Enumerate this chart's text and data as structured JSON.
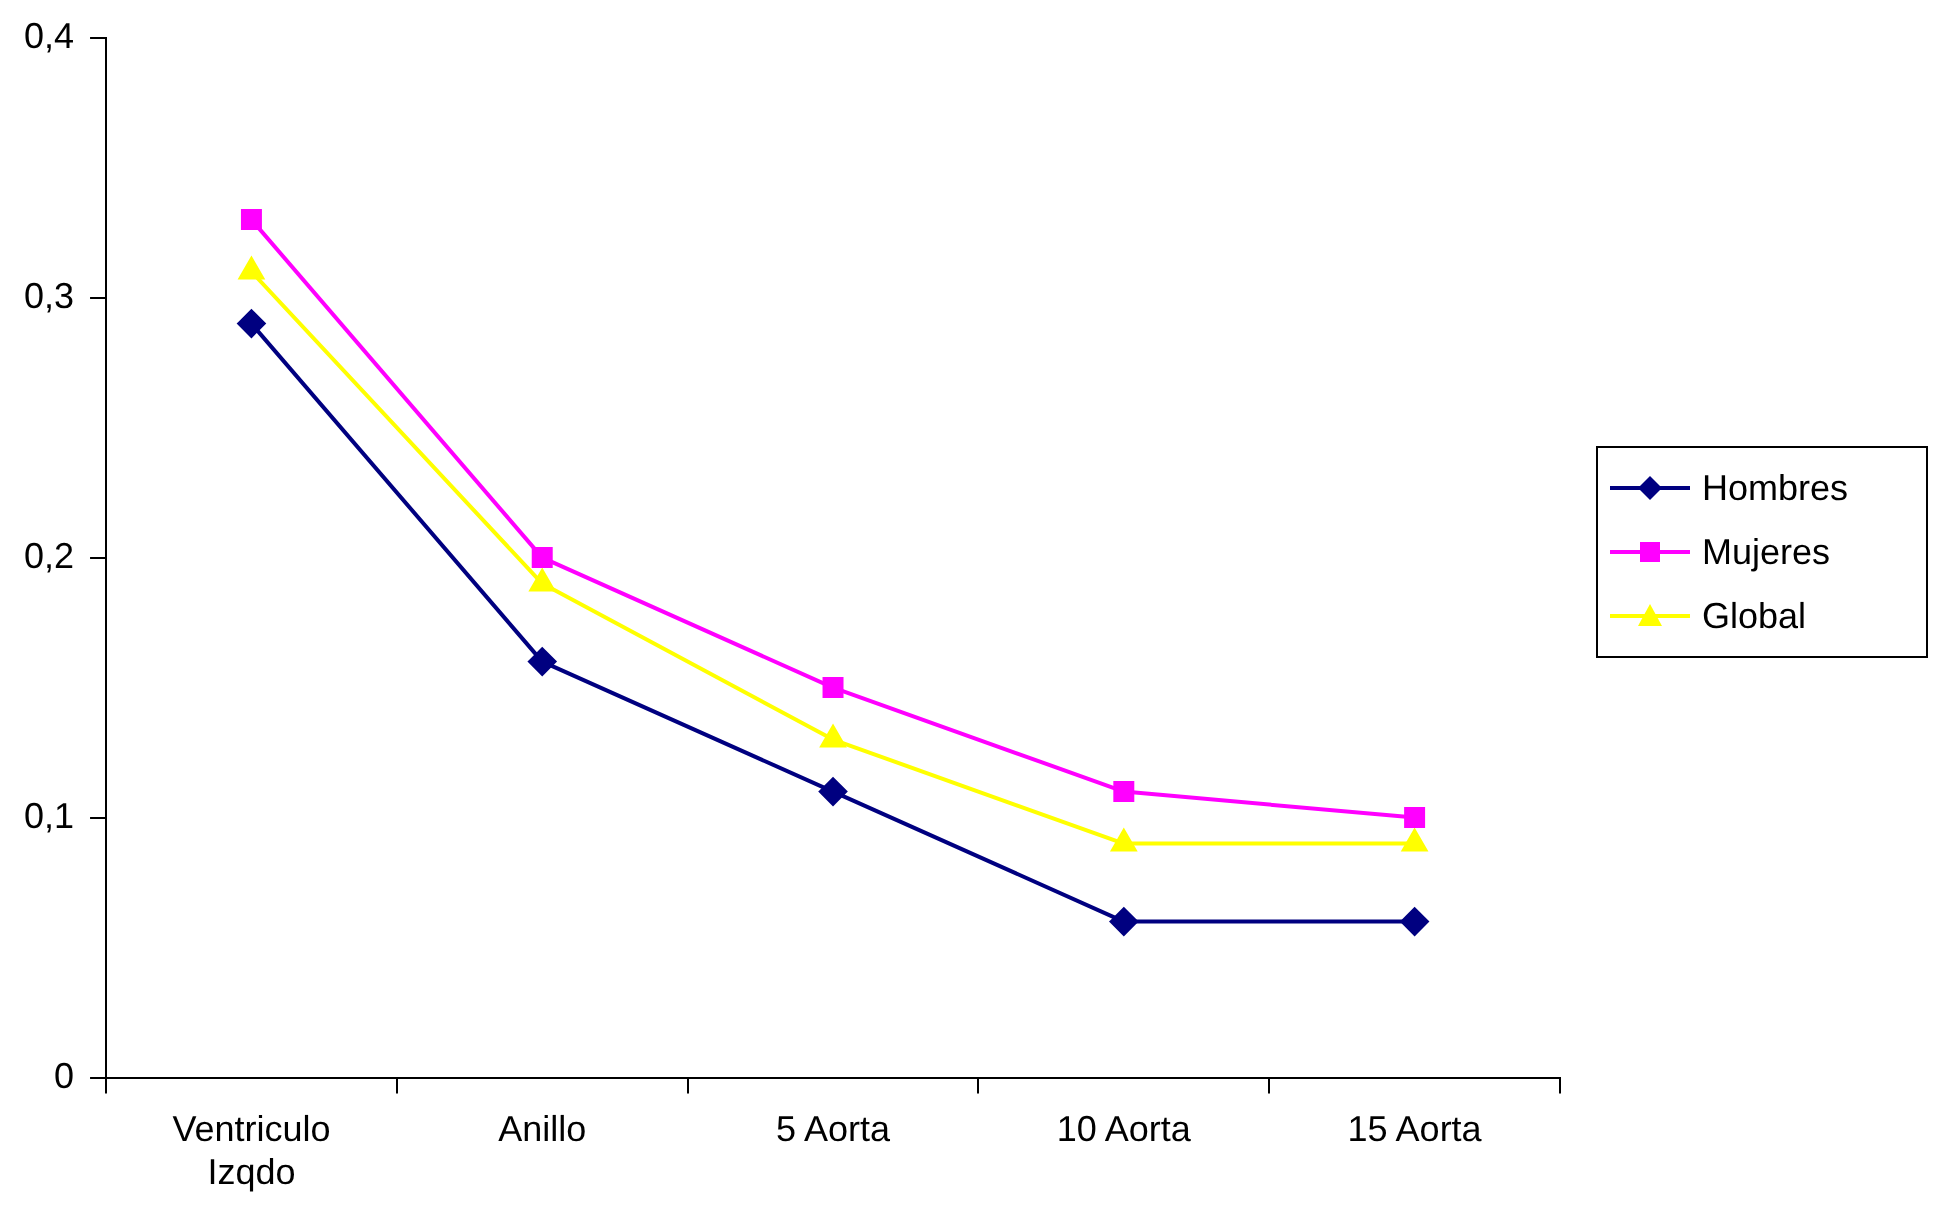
{
  "chart_data": {
    "type": "line",
    "categories": [
      "Ventriculo Izqdo",
      "Anillo",
      "5 Aorta",
      "10 Aorta",
      "15 Aorta"
    ],
    "series": [
      {
        "name": "Hombres",
        "color": "#000080",
        "marker": "diamond",
        "values": [
          0.29,
          0.16,
          0.11,
          0.06,
          0.06
        ]
      },
      {
        "name": "Mujeres",
        "color": "#ff00ff",
        "marker": "square",
        "values": [
          0.33,
          0.2,
          0.15,
          0.11,
          0.1
        ]
      },
      {
        "name": "Global",
        "color": "#ffff00",
        "marker": "triangle",
        "values": [
          0.31,
          0.19,
          0.13,
          0.09,
          0.09
        ]
      }
    ],
    "ylim": [
      0,
      0.4
    ],
    "yticks": [
      {
        "value": 0,
        "label": "0"
      },
      {
        "value": 0.1,
        "label": "0,1"
      },
      {
        "value": 0.2,
        "label": "0,2"
      },
      {
        "value": 0.3,
        "label": "0,3"
      },
      {
        "value": 0.4,
        "label": "0,4"
      }
    ],
    "grid": false,
    "legend": "right",
    "line_style": "solid"
  }
}
